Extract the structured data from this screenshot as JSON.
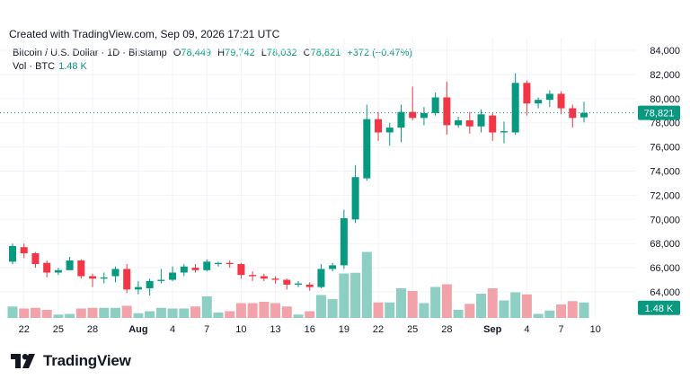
{
  "header": {
    "created": "Created with TradingView.com, Sep 09, 2026 17:21 UTC"
  },
  "legend": {
    "symbol": "Bitcoin / U.S. Dollar · 1D · Bitstamp",
    "o_label": "O",
    "o_value": "78,449",
    "h_label": "H",
    "h_value": "79,742",
    "l_label": "L",
    "l_value": "78,032",
    "c_label": "C",
    "c_value": "78,821",
    "change": "+372 (+0.47%)",
    "vol_label": "Vol · BTC",
    "vol_value": "1.48 K"
  },
  "footer": {
    "logo_text": "TradingView"
  },
  "colors": {
    "up": "#089981",
    "down": "#f23645",
    "vol_up": "#8dcfc3",
    "vol_down": "#f2a3aa",
    "last_line": "#089981"
  },
  "chart_data": {
    "type": "candlestick",
    "title": "Bitcoin / U.S. Dollar · 1D · Bitstamp",
    "y_ticks": [
      64000,
      66000,
      68000,
      70000,
      72000,
      74000,
      76000,
      78000,
      80000,
      82000,
      84000
    ],
    "y_tick_labels": [
      "64,000",
      "66,000",
      "68,000",
      "70,000",
      "72,000",
      "74,000",
      "76,000",
      "78,000",
      "80,000",
      "82,000",
      "84,000"
    ],
    "ylim": [
      62500,
      85000
    ],
    "x_ticks": [
      {
        "label": "22",
        "date": "2026-07-22"
      },
      {
        "label": "25",
        "date": "2026-07-25"
      },
      {
        "label": "28",
        "date": "2026-07-28"
      },
      {
        "label": "Aug",
        "date": "2026-08-01"
      },
      {
        "label": "4",
        "date": "2026-08-04"
      },
      {
        "label": "7",
        "date": "2026-08-07"
      },
      {
        "label": "10",
        "date": "2026-08-10"
      },
      {
        "label": "13",
        "date": "2026-08-13"
      },
      {
        "label": "16",
        "date": "2026-08-16"
      },
      {
        "label": "19",
        "date": "2026-08-19"
      },
      {
        "label": "22",
        "date": "2026-08-22"
      },
      {
        "label": "25",
        "date": "2026-08-25"
      },
      {
        "label": "28",
        "date": "2026-08-28"
      },
      {
        "label": "Sep",
        "date": "2026-09-01"
      },
      {
        "label": "4",
        "date": "2026-09-04"
      },
      {
        "label": "7",
        "date": "2026-09-07"
      },
      {
        "label": "10",
        "date": "2026-09-10"
      }
    ],
    "last_price": 78821,
    "last_price_label": "78,821",
    "last_volume_label": "1.48 K",
    "volume_max": 1.0,
    "candles": [
      {
        "date": "2026-07-21",
        "o": 66500,
        "h": 68000,
        "l": 66300,
        "c": 67800,
        "vol": 0.17
      },
      {
        "date": "2026-07-22",
        "o": 67700,
        "h": 68000,
        "l": 66800,
        "c": 67200,
        "vol": 0.14
      },
      {
        "date": "2026-07-23",
        "o": 67200,
        "h": 67300,
        "l": 66000,
        "c": 66300,
        "vol": 0.15
      },
      {
        "date": "2026-07-24",
        "o": 66400,
        "h": 66600,
        "l": 65200,
        "c": 65600,
        "vol": 0.12
      },
      {
        "date": "2026-07-25",
        "o": 65600,
        "h": 66000,
        "l": 65400,
        "c": 65800,
        "vol": 0.05
      },
      {
        "date": "2026-07-26",
        "o": 65800,
        "h": 66900,
        "l": 65800,
        "c": 66600,
        "vol": 0.06
      },
      {
        "date": "2026-07-27",
        "o": 66600,
        "h": 66700,
        "l": 65100,
        "c": 65300,
        "vol": 0.14
      },
      {
        "date": "2026-07-28",
        "o": 65300,
        "h": 65500,
        "l": 64400,
        "c": 65100,
        "vol": 0.15
      },
      {
        "date": "2026-07-29",
        "o": 65100,
        "h": 65600,
        "l": 64700,
        "c": 65200,
        "vol": 0.15
      },
      {
        "date": "2026-07-30",
        "o": 65300,
        "h": 66100,
        "l": 64800,
        "c": 65900,
        "vol": 0.15
      },
      {
        "date": "2026-07-31",
        "o": 65900,
        "h": 66300,
        "l": 63900,
        "c": 64200,
        "vol": 0.18
      },
      {
        "date": "2026-08-01",
        "o": 64200,
        "h": 64900,
        "l": 63800,
        "c": 64400,
        "vol": 0.07
      },
      {
        "date": "2026-08-02",
        "o": 64300,
        "h": 65100,
        "l": 63700,
        "c": 64900,
        "vol": 0.1
      },
      {
        "date": "2026-08-03",
        "o": 64900,
        "h": 65900,
        "l": 64700,
        "c": 65000,
        "vol": 0.15
      },
      {
        "date": "2026-08-04",
        "o": 65000,
        "h": 66100,
        "l": 64900,
        "c": 65600,
        "vol": 0.14
      },
      {
        "date": "2026-08-05",
        "o": 65600,
        "h": 66300,
        "l": 65300,
        "c": 66100,
        "vol": 0.14
      },
      {
        "date": "2026-08-06",
        "o": 66000,
        "h": 66300,
        "l": 65600,
        "c": 65800,
        "vol": 0.17
      },
      {
        "date": "2026-08-07",
        "o": 65800,
        "h": 66700,
        "l": 65700,
        "c": 66500,
        "vol": 0.32
      },
      {
        "date": "2026-08-08",
        "o": 66300,
        "h": 66500,
        "l": 66100,
        "c": 66400,
        "vol": 0.08
      },
      {
        "date": "2026-08-09",
        "o": 66400,
        "h": 66600,
        "l": 66000,
        "c": 66300,
        "vol": 0.1
      },
      {
        "date": "2026-08-10",
        "o": 66300,
        "h": 66400,
        "l": 65100,
        "c": 65400,
        "vol": 0.22
      },
      {
        "date": "2026-08-11",
        "o": 65400,
        "h": 65700,
        "l": 64900,
        "c": 65300,
        "vol": 0.22
      },
      {
        "date": "2026-08-12",
        "o": 65300,
        "h": 65500,
        "l": 64900,
        "c": 65100,
        "vol": 0.24
      },
      {
        "date": "2026-08-13",
        "o": 65100,
        "h": 65300,
        "l": 64700,
        "c": 65000,
        "vol": 0.22
      },
      {
        "date": "2026-08-14",
        "o": 65000,
        "h": 65100,
        "l": 64200,
        "c": 64600,
        "vol": 0.17
      },
      {
        "date": "2026-08-15",
        "o": 64600,
        "h": 64900,
        "l": 64400,
        "c": 64700,
        "vol": 0.05
      },
      {
        "date": "2026-08-16",
        "o": 64600,
        "h": 64800,
        "l": 64100,
        "c": 64400,
        "vol": 0.1
      },
      {
        "date": "2026-08-17",
        "o": 64400,
        "h": 66300,
        "l": 64300,
        "c": 65900,
        "vol": 0.34
      },
      {
        "date": "2026-08-18",
        "o": 65900,
        "h": 66400,
        "l": 65700,
        "c": 66200,
        "vol": 0.28
      },
      {
        "date": "2026-08-19",
        "o": 66200,
        "h": 70800,
        "l": 65900,
        "c": 70100,
        "vol": 0.66
      },
      {
        "date": "2026-08-20",
        "o": 70000,
        "h": 74500,
        "l": 69700,
        "c": 73500,
        "vol": 0.67
      },
      {
        "date": "2026-08-21",
        "o": 73400,
        "h": 79500,
        "l": 73200,
        "c": 78300,
        "vol": 0.98
      },
      {
        "date": "2026-08-22",
        "o": 78300,
        "h": 78900,
        "l": 76500,
        "c": 77200,
        "vol": 0.23
      },
      {
        "date": "2026-08-23",
        "o": 77200,
        "h": 78000,
        "l": 76100,
        "c": 77600,
        "vol": 0.23
      },
      {
        "date": "2026-08-24",
        "o": 77600,
        "h": 79500,
        "l": 76400,
        "c": 78900,
        "vol": 0.44
      },
      {
        "date": "2026-08-25",
        "o": 78900,
        "h": 81000,
        "l": 78200,
        "c": 78400,
        "vol": 0.4
      },
      {
        "date": "2026-08-26",
        "o": 78400,
        "h": 79300,
        "l": 77800,
        "c": 78800,
        "vol": 0.22
      },
      {
        "date": "2026-08-27",
        "o": 78800,
        "h": 80500,
        "l": 78600,
        "c": 80100,
        "vol": 0.46
      },
      {
        "date": "2026-08-28",
        "o": 80100,
        "h": 81400,
        "l": 77000,
        "c": 77800,
        "vol": 0.5
      },
      {
        "date": "2026-08-29",
        "o": 77800,
        "h": 78500,
        "l": 77600,
        "c": 78200,
        "vol": 0.12
      },
      {
        "date": "2026-08-30",
        "o": 78200,
        "h": 78900,
        "l": 77100,
        "c": 77700,
        "vol": 0.21
      },
      {
        "date": "2026-08-31",
        "o": 77700,
        "h": 79100,
        "l": 77200,
        "c": 78700,
        "vol": 0.36
      },
      {
        "date": "2026-09-01",
        "o": 78600,
        "h": 78800,
        "l": 76500,
        "c": 77200,
        "vol": 0.44
      },
      {
        "date": "2026-09-02",
        "o": 77200,
        "h": 78100,
        "l": 76300,
        "c": 77300,
        "vol": 0.26
      },
      {
        "date": "2026-09-03",
        "o": 77200,
        "h": 82100,
        "l": 77000,
        "c": 81300,
        "vol": 0.38
      },
      {
        "date": "2026-09-04",
        "o": 81300,
        "h": 81500,
        "l": 78600,
        "c": 79600,
        "vol": 0.35
      },
      {
        "date": "2026-09-05",
        "o": 79600,
        "h": 80100,
        "l": 79200,
        "c": 79900,
        "vol": 0.06
      },
      {
        "date": "2026-09-06",
        "o": 79900,
        "h": 80700,
        "l": 79300,
        "c": 80400,
        "vol": 0.11
      },
      {
        "date": "2026-09-07",
        "o": 80400,
        "h": 80600,
        "l": 78700,
        "c": 79200,
        "vol": 0.2
      },
      {
        "date": "2026-09-08",
        "o": 79200,
        "h": 79500,
        "l": 77600,
        "c": 78400,
        "vol": 0.25
      },
      {
        "date": "2026-09-09",
        "o": 78449,
        "h": 79742,
        "l": 78032,
        "c": 78821,
        "vol": 0.23
      }
    ]
  }
}
